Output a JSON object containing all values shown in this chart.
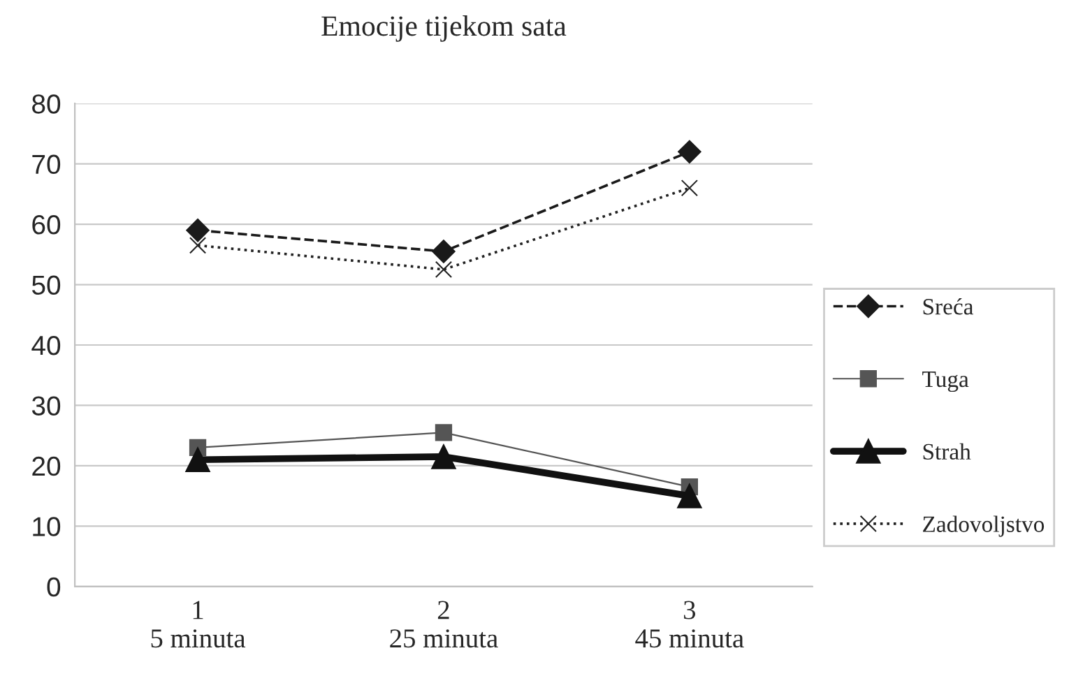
{
  "chart_data": {
    "type": "line",
    "title": "Emocije tijekom sata",
    "categories": [
      "1\n5 minuta",
      "2\n25 minuta",
      "3\n45 minuta"
    ],
    "series": [
      {
        "name": "Sreća",
        "color": "#1a1a1a",
        "values": [
          59,
          55.5,
          72
        ],
        "marker": "diamond",
        "line_style": "dashed"
      },
      {
        "name": "Tuga",
        "color": "#555555",
        "values": [
          23,
          25.5,
          16.5
        ],
        "marker": "square",
        "line_style": "solid"
      },
      {
        "name": "Strah",
        "color": "#111111",
        "values": [
          21,
          21.5,
          15
        ],
        "marker": "triangle",
        "line_style": "solid"
      },
      {
        "name": "Zadovoljstvo",
        "color": "#222222",
        "values": [
          56.5,
          52.5,
          66
        ],
        "marker": "cross",
        "line_style": "dotted"
      }
    ],
    "ylim": [
      0,
      80
    ],
    "yticks": [
      0,
      10,
      20,
      30,
      40,
      50,
      60,
      70,
      80
    ],
    "grid": "y",
    "legend": "right"
  }
}
